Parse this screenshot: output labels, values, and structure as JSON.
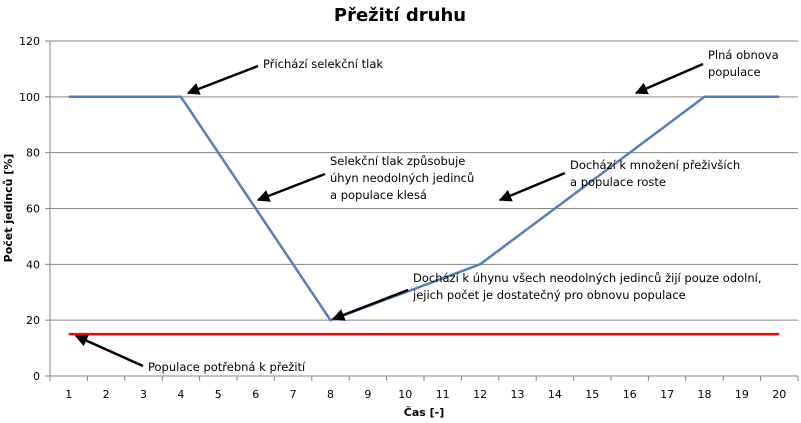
{
  "chart_data": {
    "type": "line",
    "title": "Přežití druhu",
    "xlabel": "Čas [-]",
    "ylabel": "Počet jedinců [%]",
    "x": [
      1,
      2,
      3,
      4,
      5,
      6,
      7,
      8,
      9,
      10,
      11,
      12,
      13,
      14,
      15,
      16,
      17,
      18,
      19,
      20
    ],
    "ylim": [
      0,
      120
    ],
    "yticks": [
      0,
      20,
      40,
      60,
      80,
      100,
      120
    ],
    "grid": true,
    "series": [
      {
        "values": [
          100,
          100,
          100,
          100,
          80,
          60,
          40,
          20,
          25,
          30,
          35,
          40,
          50,
          60,
          70,
          80,
          90,
          100,
          100,
          100
        ],
        "color": "#4f81bd"
      },
      {
        "values": [
          15,
          15,
          15,
          15,
          15,
          15,
          15,
          15,
          15,
          15,
          15,
          15,
          15,
          15,
          15,
          15,
          15,
          15,
          15,
          15
        ],
        "color": "#ff0000"
      }
    ],
    "annotations": [
      {
        "lines": [
          "Přichází selekční tlak"
        ],
        "target": [
          4,
          100
        ]
      },
      {
        "lines": [
          "Plná obnova",
          "populace"
        ],
        "target": [
          16,
          100
        ]
      },
      {
        "lines": [
          "Selekční tlak způsobuje",
          "úhyn neodolných jedinců",
          "a populace klesá"
        ],
        "target": [
          6,
          62
        ]
      },
      {
        "lines": [
          "Dochází k množení přeživších",
          "a populace roste"
        ],
        "target": [
          12,
          62
        ]
      },
      {
        "lines": [
          "Dochází k úhynu všech neodolných jedinců žijí pouze odolní,",
          "jejich počet je dostatečný pro obnovu populace"
        ],
        "target": [
          8,
          20
        ]
      },
      {
        "lines": [
          "Populace potřebná k přežití"
        ],
        "target": [
          1,
          15
        ]
      }
    ]
  }
}
